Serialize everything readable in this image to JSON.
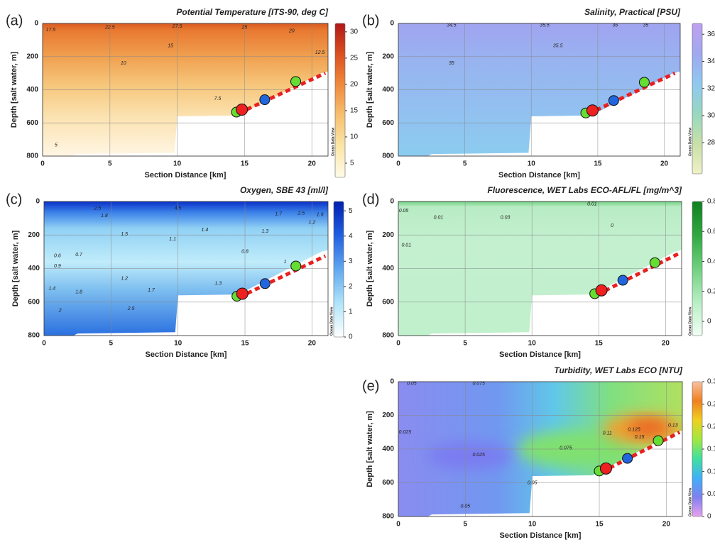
{
  "chart_data": [
    {
      "type": "section",
      "panel_label": "(a)",
      "title": "Potential Temperature [ITS-90, deg C]",
      "xlabel": "Section Distance [km]",
      "ylabel": "Depth [salt water, m]",
      "xlim": [
        0,
        21.2
      ],
      "xticks": [
        0,
        5,
        10,
        15,
        20
      ],
      "ylim": [
        800,
        0
      ],
      "yticks": [
        0,
        200,
        400,
        600,
        800
      ],
      "grid": true,
      "colorbar": {
        "lim": [
          2.3,
          31.6
        ],
        "ticks": [
          5,
          10,
          15,
          20,
          25,
          30
        ],
        "colors": [
          "#fffbe8",
          "#fbe6a8",
          "#f7c070",
          "#f08a3c",
          "#dc5020",
          "#b01818"
        ],
        "label": "Ocean Data View"
      },
      "contour_labels": [
        {
          "x": 0.6,
          "y": 40,
          "value": 17.5
        },
        {
          "x": 5,
          "y": 25,
          "value": 22.5
        },
        {
          "x": 10,
          "y": 18,
          "value": 27.5
        },
        {
          "x": 15,
          "y": 25,
          "value": 25
        },
        {
          "x": 18.5,
          "y": 45,
          "value": 20
        },
        {
          "x": 9.5,
          "y": 135,
          "value": 15
        },
        {
          "x": 20.6,
          "y": 175,
          "value": 12.5
        },
        {
          "x": 6,
          "y": 240,
          "value": 10
        },
        {
          "x": 13,
          "y": 455,
          "value": 7.5
        },
        {
          "x": 1,
          "y": 735,
          "value": 5
        }
      ],
      "stations": {
        "x": [
          14.4,
          14.8,
          16.5,
          18.8
        ],
        "y": [
          535,
          520,
          460,
          350
        ],
        "colors": [
          "#66dd33",
          "#ee2020",
          "#2266dd",
          "#66dd33"
        ]
      },
      "transect": {
        "x": [
          14.6,
          21.0
        ],
        "y": [
          540,
          300
        ],
        "color": "#e82020"
      }
    },
    {
      "type": "section",
      "panel_label": "(b)",
      "title": "Salinity, Practical [PSU]",
      "xlabel": "Section Distance [km]",
      "ylabel": "Depth [salt water, m]",
      "xlim": [
        0,
        21.2
      ],
      "xticks": [
        0,
        5,
        10,
        15,
        20
      ],
      "ylim": [
        800,
        0
      ],
      "yticks": [
        0,
        200,
        400,
        600,
        800
      ],
      "grid": true,
      "colorbar": {
        "lim": [
          25.7,
          36.8
        ],
        "ticks": [
          28,
          30,
          32,
          34,
          36
        ],
        "colors": [
          "#f0f0c8",
          "#c8e0a8",
          "#98d8c0",
          "#90c8f0",
          "#a0a8f0",
          "#c0a0f0"
        ],
        "label": "Ocean Data View"
      },
      "contour_labels": [
        {
          "x": 4,
          "y": 12,
          "value": 34.5
        },
        {
          "x": 11,
          "y": 12,
          "value": 35.5
        },
        {
          "x": 16.3,
          "y": 12,
          "value": 36
        },
        {
          "x": 18.6,
          "y": 12,
          "value": 35
        },
        {
          "x": 12,
          "y": 135,
          "value": 35.5
        },
        {
          "x": 4,
          "y": 240,
          "value": 35
        }
      ],
      "stations": {
        "x": [
          14.1,
          14.6,
          16.2,
          18.5
        ],
        "y": [
          540,
          525,
          465,
          355
        ],
        "colors": [
          "#66dd33",
          "#ee2020",
          "#2266dd",
          "#66dd33"
        ]
      },
      "transect": {
        "x": [
          14.3,
          20.8
        ],
        "y": [
          545,
          300
        ],
        "color": "#e82020"
      }
    },
    {
      "type": "section",
      "panel_label": "(c)",
      "title": "Oxygen, SBE 43 [ml/l]",
      "xlabel": "Section Distance [km]",
      "ylabel": "Depth [salt water, m]",
      "xlim": [
        0,
        21.2
      ],
      "xticks": [
        0,
        5,
        10,
        15,
        20
      ],
      "ylim": [
        800,
        0
      ],
      "yticks": [
        0,
        200,
        400,
        600,
        800
      ],
      "grid": true,
      "colorbar": {
        "lim": [
          0,
          5.37
        ],
        "ticks": [
          0,
          1,
          2,
          3,
          4,
          5
        ],
        "colors": [
          "#ffffff",
          "#b0e4f8",
          "#60a8f0",
          "#2060e0",
          "#0020b0"
        ],
        "label": "Ocean Data View"
      },
      "contour_labels": [
        {
          "x": 4,
          "y": 40,
          "value": 2.5
        },
        {
          "x": 10,
          "y": 40,
          "value": 4.5
        },
        {
          "x": 4.5,
          "y": 85,
          "value": 1.8
        },
        {
          "x": 17.5,
          "y": 75,
          "value": 1.7
        },
        {
          "x": 19.2,
          "y": 70,
          "value": 2.5
        },
        {
          "x": 20.6,
          "y": 78,
          "value": 1.9
        },
        {
          "x": 6,
          "y": 195,
          "value": 1.5
        },
        {
          "x": 9.6,
          "y": 225,
          "value": 1.1
        },
        {
          "x": 12,
          "y": 170,
          "value": 1.4
        },
        {
          "x": 16.5,
          "y": 178,
          "value": 1.3
        },
        {
          "x": 20,
          "y": 125,
          "value": 1.2
        },
        {
          "x": 15,
          "y": 300,
          "value": 0.8
        },
        {
          "x": 18,
          "y": 360,
          "value": 1
        },
        {
          "x": 1,
          "y": 325,
          "value": 0.6
        },
        {
          "x": 2.6,
          "y": 318,
          "value": 0.7
        },
        {
          "x": 1,
          "y": 385,
          "value": 0.9
        },
        {
          "x": 6,
          "y": 460,
          "value": 1.2
        },
        {
          "x": 13,
          "y": 490,
          "value": 1.3
        },
        {
          "x": 8,
          "y": 530,
          "value": 1.7
        },
        {
          "x": 2.6,
          "y": 540,
          "value": 1.8
        },
        {
          "x": 0.6,
          "y": 520,
          "value": 1.4
        },
        {
          "x": 1.2,
          "y": 650,
          "value": 2
        },
        {
          "x": 6.5,
          "y": 640,
          "value": 2.5
        }
      ],
      "stations": {
        "x": [
          14.4,
          14.8,
          16.5,
          18.8
        ],
        "y": [
          565,
          550,
          490,
          385
        ],
        "colors": [
          "#66dd33",
          "#ee2020",
          "#2266dd",
          "#66dd33"
        ]
      },
      "transect": {
        "x": [
          14.6,
          21.0
        ],
        "y": [
          570,
          325
        ],
        "color": "#e82020"
      }
    },
    {
      "type": "section",
      "panel_label": "(d)",
      "title": "Fluorescence, WET Labs ECO-AFL/FL [mg/m^3]",
      "xlabel": "Section Distance [km]",
      "ylabel": "Depth [salt water, m]",
      "xlim": [
        0,
        21.2
      ],
      "xticks": [
        0,
        5,
        10,
        15,
        20
      ],
      "ylim": [
        800,
        0
      ],
      "yticks": [
        0,
        200,
        400,
        600,
        800
      ],
      "grid": true,
      "colorbar": {
        "lim": [
          -0.095,
          0.8
        ],
        "ticks": [
          0,
          0.2,
          0.4,
          0.6,
          0.8
        ],
        "colors": [
          "#f0fff4",
          "#b8eec4",
          "#70d080",
          "#30a840",
          "#108020"
        ],
        "label": "Ocean Data View"
      },
      "contour_labels": [
        {
          "x": 0.4,
          "y": 55,
          "value": 0.05
        },
        {
          "x": 3,
          "y": 95,
          "value": 0.01
        },
        {
          "x": 8,
          "y": 95,
          "value": 0.03
        },
        {
          "x": 14.5,
          "y": 15,
          "value": 0.01
        },
        {
          "x": 16,
          "y": 145,
          "value": 0
        },
        {
          "x": 0.6,
          "y": 260,
          "value": 0.01
        }
      ],
      "stations": {
        "x": [
          14.7,
          15.2,
          16.8,
          19.2
        ],
        "y": [
          550,
          530,
          470,
          365
        ],
        "colors": [
          "#66dd33",
          "#ee2020",
          "#2266dd",
          "#66dd33"
        ]
      },
      "transect": {
        "x": [
          14.9,
          21.0
        ],
        "y": [
          555,
          310
        ],
        "color": "#e82020"
      }
    },
    {
      "type": "section",
      "panel_label": "(e)",
      "title": "Turbidity, WET Labs ECO [NTU]",
      "xlabel": "Section Distance [km]",
      "ylabel": "Depth [salt water, m]",
      "xlim": [
        0,
        21.2
      ],
      "xticks": [
        0,
        5,
        10,
        15,
        20
      ],
      "ylim": [
        800,
        0
      ],
      "yticks": [
        0,
        200,
        400,
        600,
        800
      ],
      "grid": true,
      "colorbar": {
        "lim": [
          0,
          0.3
        ],
        "ticks": [
          0,
          0.05,
          0.1,
          0.15,
          0.2,
          0.25,
          0.3
        ],
        "colors": [
          "#e8a0f0",
          "#8080f0",
          "#40b0f8",
          "#40e0a0",
          "#a0e840",
          "#f0d020",
          "#f08020",
          "#f8c0a0"
        ],
        "label": "Ocean Data View"
      },
      "contour_labels": [
        {
          "x": 1,
          "y": 12,
          "value": 0.05
        },
        {
          "x": 6,
          "y": 12,
          "value": 0.075
        },
        {
          "x": 0.5,
          "y": 300,
          "value": 0.025
        },
        {
          "x": 6,
          "y": 435,
          "value": 0.025
        },
        {
          "x": 12.5,
          "y": 395,
          "value": 0.075
        },
        {
          "x": 15.6,
          "y": 305,
          "value": 0.11
        },
        {
          "x": 17.6,
          "y": 285,
          "value": 0.125
        },
        {
          "x": 18,
          "y": 330,
          "value": 0.15
        },
        {
          "x": 20.5,
          "y": 260,
          "value": 0.13
        },
        {
          "x": 10,
          "y": 600,
          "value": 0.05
        },
        {
          "x": 5,
          "y": 740,
          "value": 0.05
        }
      ],
      "stations": {
        "x": [
          15.0,
          15.5,
          17.1,
          19.4
        ],
        "y": [
          530,
          515,
          455,
          350
        ],
        "colors": [
          "#66dd33",
          "#ee2020",
          "#2266dd",
          "#66dd33"
        ]
      },
      "transect": {
        "x": [
          15.2,
          21.0
        ],
        "y": [
          535,
          300
        ],
        "color": "#e82020"
      }
    }
  ]
}
